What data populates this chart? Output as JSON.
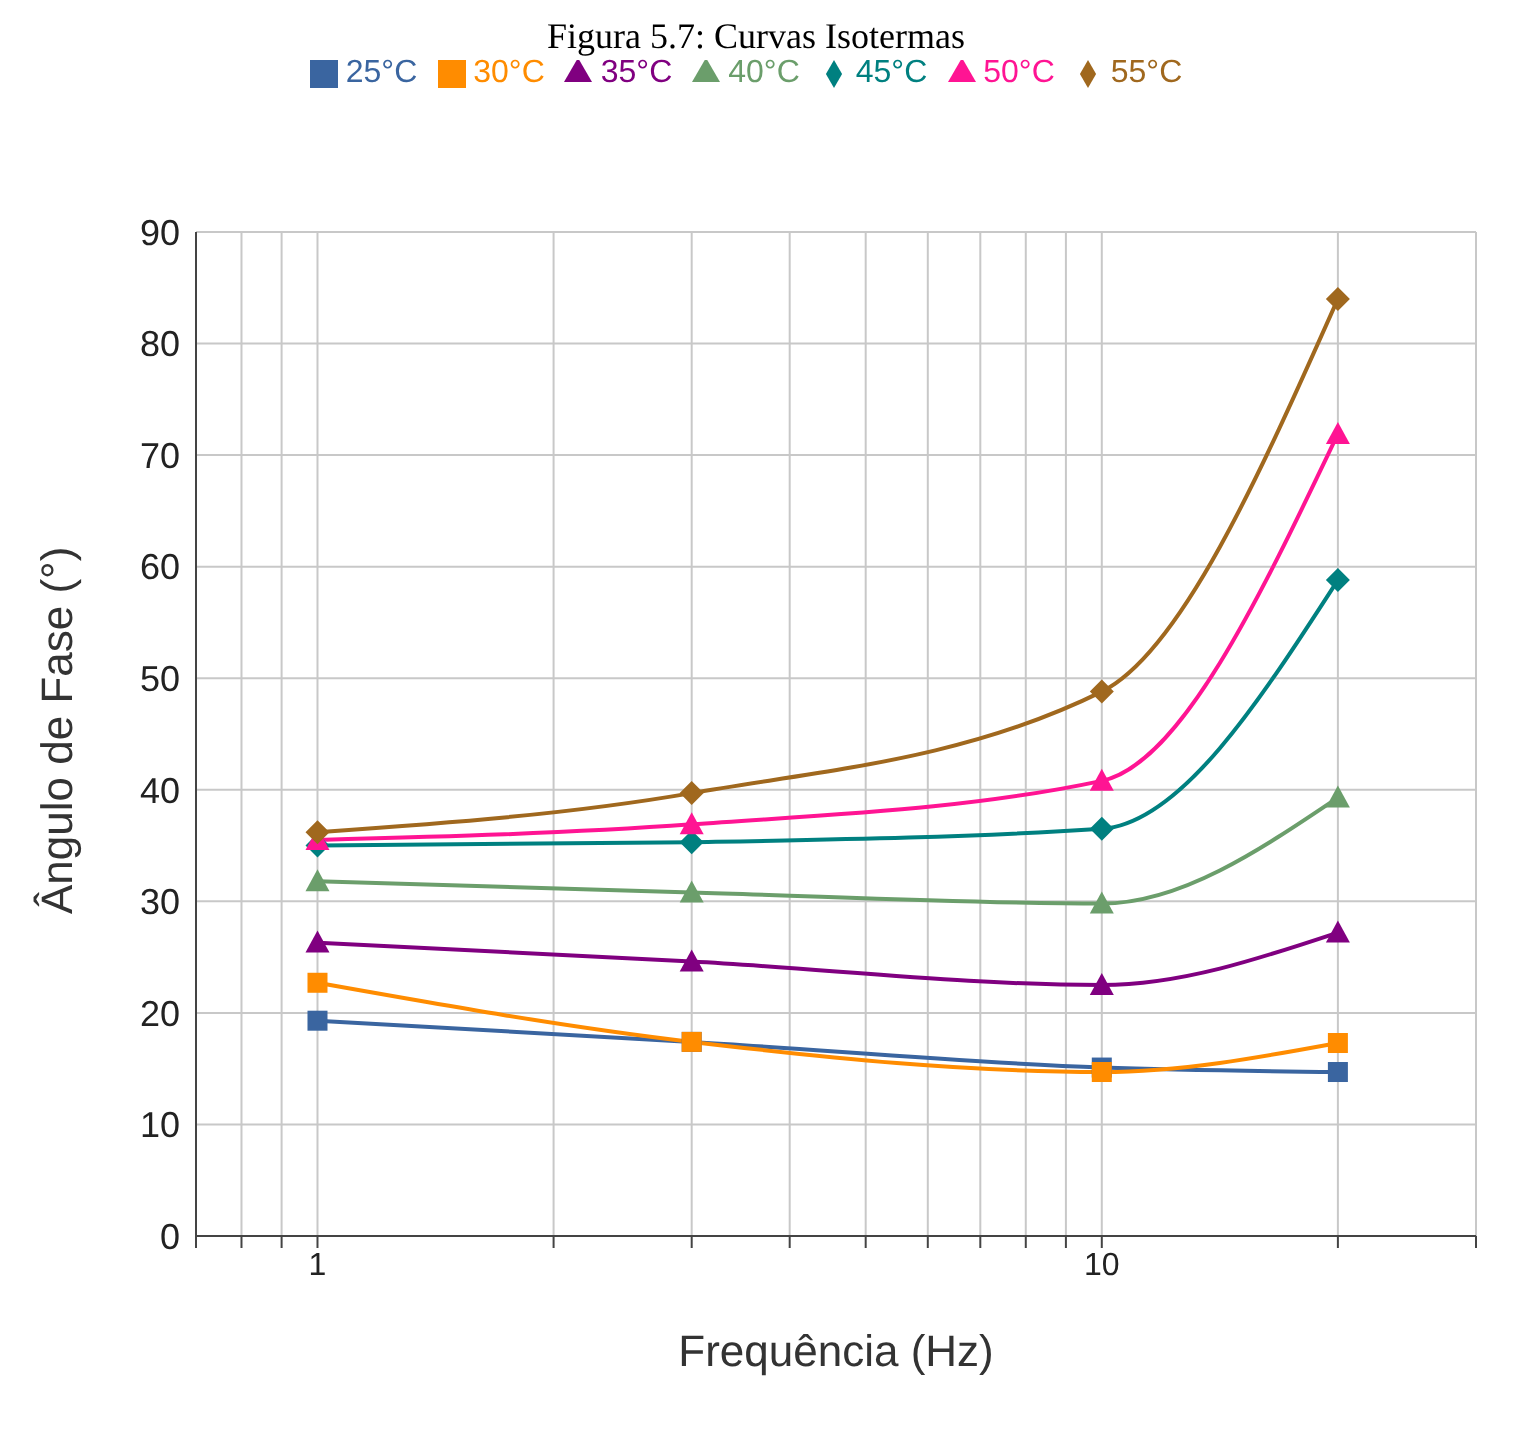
{
  "chart_data": {
    "type": "line",
    "title": "Figura 5.7: Curvas Isotermas",
    "xlabel": "Frequência (Hz)",
    "ylabel": "Ângulo de Fase (°)",
    "log": "x",
    "x": [
      1,
      3,
      10,
      20
    ],
    "xlim": [
      0.7,
      30
    ],
    "xticks": [
      {
        "value": 0.7,
        "label": null
      },
      {
        "value": 0.8,
        "label": null
      },
      {
        "value": 0.9,
        "label": null
      },
      1,
      {
        "value": 2,
        "label": null
      },
      {
        "value": 3,
        "label": null
      },
      {
        "value": 4,
        "label": null
      },
      {
        "value": 5,
        "label": null
      },
      {
        "value": 6,
        "label": null
      },
      {
        "value": 7,
        "label": null
      },
      {
        "value": 8,
        "label": null
      },
      {
        "value": 9,
        "label": null
      },
      10,
      {
        "value": 20,
        "label": null
      },
      {
        "value": 30,
        "label": null
      }
    ],
    "ylim": [
      0,
      90
    ],
    "yticks": [
      0,
      10,
      20,
      30,
      40,
      50,
      60,
      70,
      80,
      90
    ],
    "grid": true,
    "legend": "top",
    "series": [
      {
        "name": "25°C",
        "color": "#3a65a0",
        "marker": "square",
        "values": [
          19.3,
          17.4,
          15.1,
          14.7
        ]
      },
      {
        "name": "30°C",
        "color": "#ff8c00",
        "marker": "square",
        "values": [
          22.7,
          17.4,
          14.7,
          17.3
        ]
      },
      {
        "name": "35°C",
        "color": "#800080",
        "marker": "triangle",
        "values": [
          26.3,
          24.6,
          22.5,
          27.2
        ]
      },
      {
        "name": "40°C",
        "color": "#6b9e6b",
        "marker": "triangle",
        "values": [
          31.8,
          30.8,
          29.8,
          39.3
        ]
      },
      {
        "name": "45°C",
        "color": "#008080",
        "marker": "diamond",
        "values": [
          35.0,
          35.3,
          36.5,
          58.8
        ]
      },
      {
        "name": "50°C",
        "color": "#ff1493",
        "marker": "triangle",
        "values": [
          35.5,
          36.9,
          40.8,
          71.9
        ]
      },
      {
        "name": "55°C",
        "color": "#a0681e",
        "marker": "diamond",
        "values": [
          36.2,
          39.7,
          48.8,
          84.0
        ]
      }
    ]
  }
}
